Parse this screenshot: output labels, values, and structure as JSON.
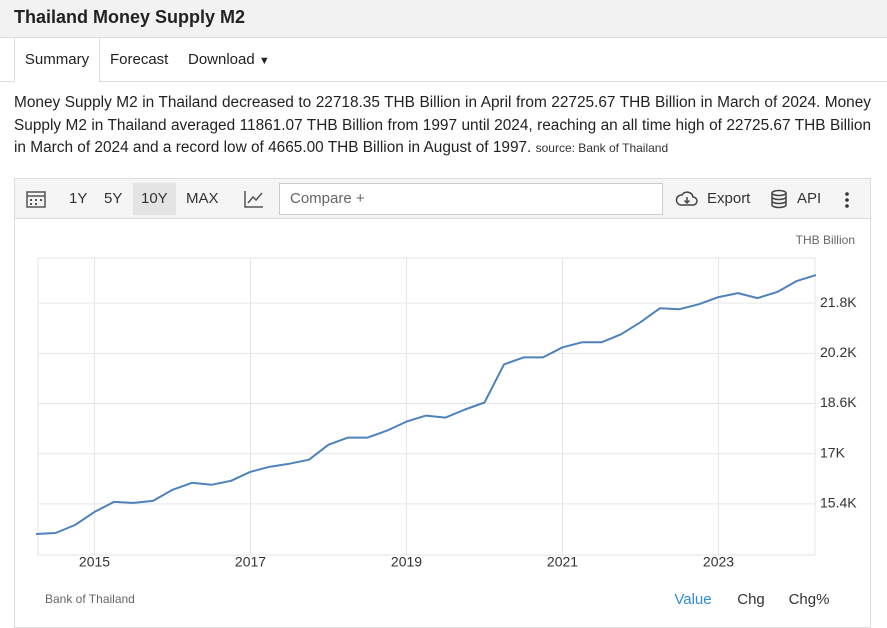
{
  "header": {
    "title": "Thailand Money Supply M2"
  },
  "tabs": [
    "Summary",
    "Forecast",
    "Download"
  ],
  "summary": {
    "text": "Money Supply M2 in Thailand decreased to 22718.35 THB Billion in April from 22725.67 THB Billion in March of 2024. Money Supply M2 in Thailand averaged 11861.07 THB Billion from 1997 until 2024, reaching an all time high of 22725.67 THB Billion in March of 2024 and a record low of 4665.00 THB Billion in August of 1997.",
    "source": "source: Bank of Thailand"
  },
  "toolbar": {
    "ranges": [
      "1Y",
      "5Y",
      "10Y",
      "MAX"
    ],
    "compare": "Compare +",
    "export": "Export",
    "api": "API"
  },
  "chart_data": {
    "type": "line",
    "unit_label": "THB Billion",
    "color": "#4f81bd",
    "x": [
      2014.25,
      2014.5,
      2014.75,
      2015.0,
      2015.25,
      2015.5,
      2015.75,
      2016.0,
      2016.25,
      2016.5,
      2016.75,
      2017.0,
      2017.25,
      2017.5,
      2017.75,
      2018.0,
      2018.25,
      2018.5,
      2018.75,
      2019.0,
      2019.25,
      2019.5,
      2019.75,
      2020.0,
      2020.25,
      2020.5,
      2020.75,
      2021.0,
      2021.25,
      2021.5,
      2021.75,
      2022.0,
      2022.25,
      2022.5,
      2022.75,
      2023.0,
      2023.25,
      2023.5,
      2023.75,
      2024.0,
      2024.25
    ],
    "values": [
      14440,
      14472,
      14728,
      15144,
      15464,
      15432,
      15496,
      15848,
      16072,
      16008,
      16136,
      16424,
      16584,
      16680,
      16808,
      17288,
      17512,
      17512,
      17736,
      18024,
      18216,
      18152,
      18408,
      18632,
      19848,
      20072,
      20072,
      20392,
      20552,
      20552,
      20808,
      21192,
      21640,
      21608,
      21768,
      21992,
      22120,
      21960,
      22152,
      22504,
      22696
    ],
    "xlim": [
      2014.25,
      2024.25
    ],
    "xticks": [
      2015,
      2017,
      2019,
      2021,
      2023
    ],
    "ylim": [
      13770,
      23240
    ],
    "yticks": [
      {
        "value": 15400,
        "label": "15.4K"
      },
      {
        "value": 17000,
        "label": "17K"
      },
      {
        "value": 18600,
        "label": "18.6K"
      },
      {
        "value": 20200,
        "label": "20.2K"
      },
      {
        "value": 21800,
        "label": "21.8K"
      }
    ],
    "grid": true
  },
  "footer": {
    "source": "Bank of Thailand",
    "views": [
      "Value",
      "Chg",
      "Chg%"
    ]
  }
}
